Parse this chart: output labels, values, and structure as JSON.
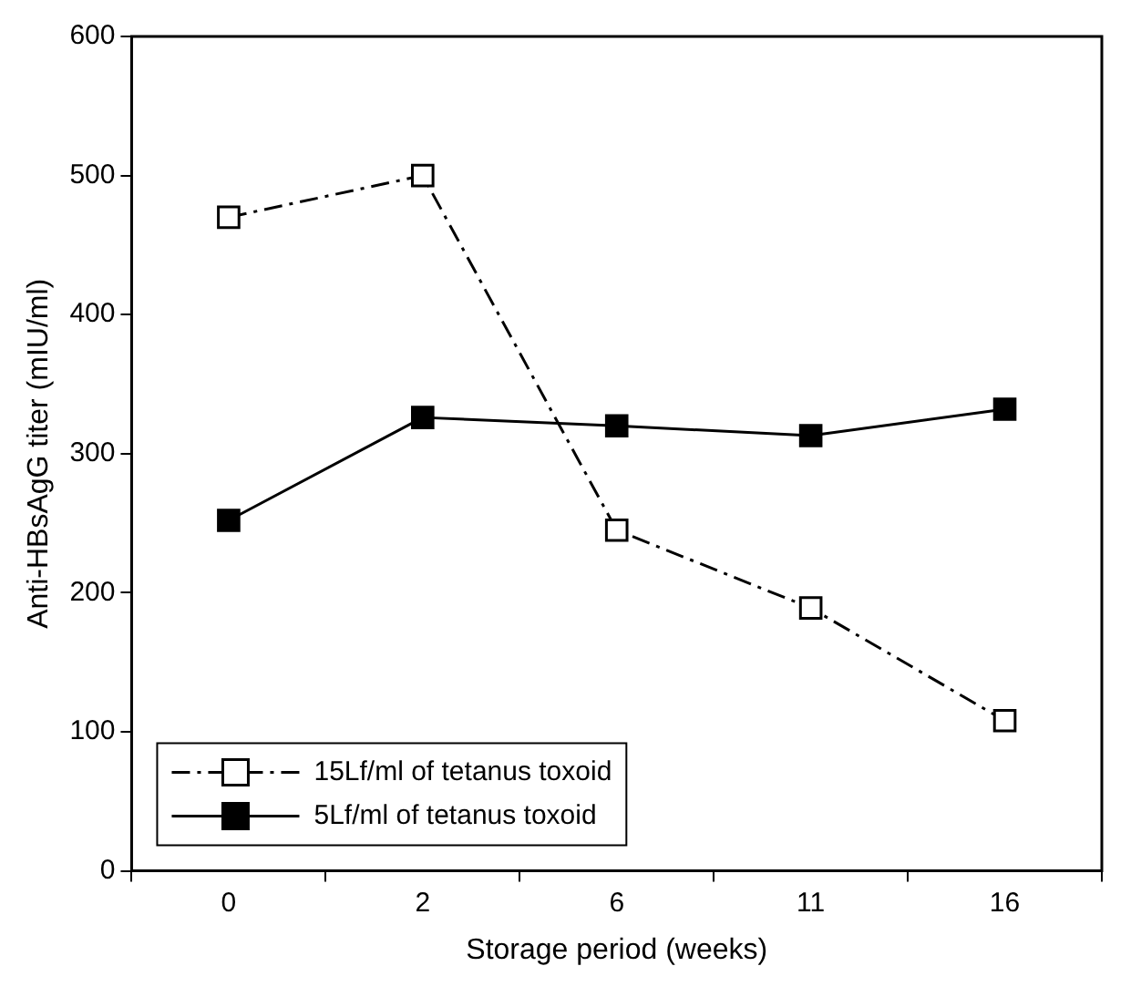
{
  "chart_data": {
    "type": "line",
    "xlabel": "Storage period (weeks)",
    "ylabel": "Anti-HBsAgG titer (mIU/ml)",
    "categories": [
      "0",
      "2",
      "6",
      "11",
      "16"
    ],
    "series": [
      {
        "name": "15Lf/ml of tetanus toxoid",
        "color": "#000000",
        "values": [
          470,
          500,
          245,
          189,
          108
        ],
        "line_style": "dashed"
      },
      {
        "name": "5Lf/ml of tetanus toxoid",
        "color": "#000000",
        "values": [
          252,
          326,
          320,
          313,
          332
        ],
        "line_style": "solid"
      }
    ],
    "ylim": [
      0,
      600
    ],
    "yticks": [
      0,
      100,
      200,
      300,
      400,
      500,
      600
    ],
    "grid": false,
    "legend": "bottom left",
    "marker": "square"
  }
}
